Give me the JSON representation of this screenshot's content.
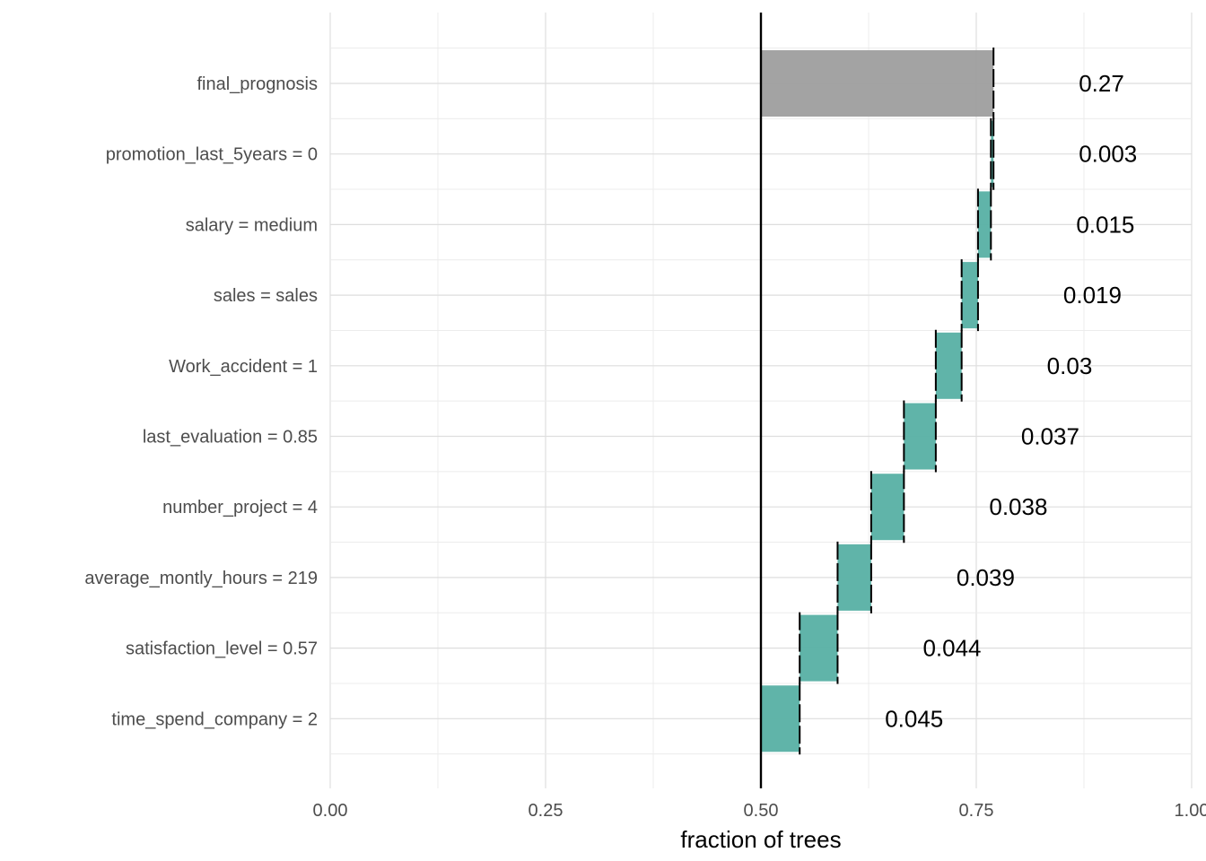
{
  "chart_data": {
    "type": "bar",
    "subtype": "waterfall",
    "orientation": "horizontal",
    "xlabel": "fraction of trees",
    "ylabel": "",
    "xlim": [
      0,
      1
    ],
    "x_ticks": [
      0,
      0.25,
      0.5,
      0.75,
      1
    ],
    "x_tick_labels": [
      "0.00",
      "0.25",
      "0.50",
      "0.75",
      "1.00"
    ],
    "baseline": 0.5,
    "grid": true,
    "categories": [
      "final_prognosis",
      "promotion_last_5years = 0",
      "salary = medium",
      "sales = sales",
      "Work_accident = 1",
      "last_evaluation = 0.85",
      "number_project = 4",
      "average_montly_hours = 219",
      "satisfaction_level = 0.57",
      "time_spend_company = 2"
    ],
    "bars": [
      {
        "start": 0.5,
        "end": 0.77,
        "label": "0.27",
        "kind": "total"
      },
      {
        "start": 0.767,
        "end": 0.77,
        "label": "0.003",
        "kind": "contribution"
      },
      {
        "start": 0.752,
        "end": 0.767,
        "label": "0.015",
        "kind": "contribution"
      },
      {
        "start": 0.733,
        "end": 0.752,
        "label": "0.019",
        "kind": "contribution"
      },
      {
        "start": 0.703,
        "end": 0.733,
        "label": "0.03",
        "kind": "contribution"
      },
      {
        "start": 0.666,
        "end": 0.703,
        "label": "0.037",
        "kind": "contribution"
      },
      {
        "start": 0.628,
        "end": 0.666,
        "label": "0.038",
        "kind": "contribution"
      },
      {
        "start": 0.589,
        "end": 0.628,
        "label": "0.039",
        "kind": "contribution"
      },
      {
        "start": 0.545,
        "end": 0.589,
        "label": "0.044",
        "kind": "contribution"
      },
      {
        "start": 0.5,
        "end": 0.545,
        "label": "0.045",
        "kind": "contribution"
      }
    ],
    "colors": {
      "total": "#a0a0a0",
      "contribution": "#5bb2a6",
      "grid": "#dedede",
      "baseline": "#000000"
    }
  }
}
